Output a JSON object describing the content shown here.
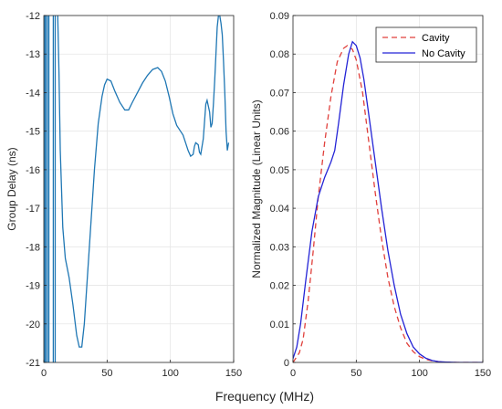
{
  "xlabel": "Frequency (MHz)",
  "chart_data": [
    {
      "type": "line",
      "ylabel": "Group Delay (ns)",
      "xlim": [
        0,
        150
      ],
      "ylim": [
        -21,
        -12
      ],
      "xticks": [
        0,
        50,
        100,
        150
      ],
      "yticks": [
        -21,
        -20,
        -19,
        -18,
        -17,
        -16,
        -15,
        -14,
        -13,
        -12
      ],
      "ytick_labels": [
        "-21",
        "-20",
        "-19",
        "-18",
        "-17",
        "-16",
        "-15",
        "-14",
        "-13",
        "-12"
      ],
      "grid": true,
      "color": "#1f77b4",
      "series": [
        {
          "x": [
            11,
            12,
            13,
            15,
            17,
            20,
            23,
            26,
            28,
            30,
            32,
            34,
            37,
            40,
            43,
            46,
            48,
            50,
            53,
            56,
            60,
            64,
            67,
            70,
            74,
            78,
            82,
            86,
            90,
            93,
            96,
            99,
            102,
            105,
            108,
            110,
            112,
            114,
            116,
            118,
            119,
            120,
            122,
            123,
            124,
            126,
            127,
            128,
            129,
            131,
            132,
            133,
            134,
            135,
            136,
            137,
            138,
            139,
            140,
            141,
            142,
            143,
            144,
            145,
            146
          ],
          "y": [
            -12,
            -13.5,
            -15.5,
            -17.5,
            -18.3,
            -18.8,
            -19.5,
            -20.3,
            -20.6,
            -20.6,
            -20.0,
            -19.0,
            -17.5,
            -16.0,
            -14.8,
            -14.1,
            -13.8,
            -13.65,
            -13.7,
            -13.95,
            -14.25,
            -14.45,
            -14.45,
            -14.25,
            -14.0,
            -13.75,
            -13.55,
            -13.4,
            -13.35,
            -13.45,
            -13.7,
            -14.1,
            -14.55,
            -14.85,
            -15.0,
            -15.1,
            -15.3,
            -15.5,
            -15.65,
            -15.6,
            -15.4,
            -15.3,
            -15.35,
            -15.55,
            -15.6,
            -15.2,
            -14.75,
            -14.3,
            -14.2,
            -14.5,
            -14.9,
            -14.8,
            -14.3,
            -13.7,
            -13.0,
            -12.3,
            -12.0,
            -12.0,
            -12.2,
            -12.5,
            -13.2,
            -14.0,
            -15.0,
            -15.5,
            -15.3
          ]
        }
      ],
      "vertical_spikes_x": [
        0.8,
        1.5,
        2.8,
        4.0,
        7.5,
        9.0
      ]
    },
    {
      "type": "line",
      "ylabel": "Normalized Magnitude (Linear Units)",
      "xlim": [
        0,
        150
      ],
      "ylim": [
        0,
        0.09
      ],
      "xticks": [
        0,
        50,
        100,
        150
      ],
      "yticks": [
        0,
        0.01,
        0.02,
        0.03,
        0.04,
        0.05,
        0.06,
        0.07,
        0.08,
        0.09
      ],
      "ytick_labels": [
        "0",
        "0.01",
        "0.02",
        "0.03",
        "0.04",
        "0.05",
        "0.06",
        "0.07",
        "0.08",
        "0.09"
      ],
      "grid": true,
      "legend": "top-right",
      "series": [
        {
          "name": "Cavity",
          "color": "#e0403c",
          "dash": true,
          "x": [
            0,
            5,
            8,
            12,
            16,
            20,
            25,
            30,
            35,
            40,
            43,
            47,
            50,
            55,
            60,
            65,
            70,
            75,
            80,
            85,
            90,
            95,
            100,
            105,
            110,
            115,
            120,
            130,
            140,
            150
          ],
          "y": [
            0.0,
            0.0025,
            0.006,
            0.016,
            0.029,
            0.043,
            0.057,
            0.069,
            0.078,
            0.0815,
            0.0822,
            0.0812,
            0.0785,
            0.07,
            0.057,
            0.044,
            0.032,
            0.022,
            0.0145,
            0.009,
            0.005,
            0.0028,
            0.0015,
            0.0008,
            0.0004,
            0.0002,
            0.0001,
            0.0,
            0.0,
            0.0
          ]
        },
        {
          "name": "No Cavity",
          "color": "#2323d6",
          "dash": false,
          "x": [
            0,
            3,
            6,
            10,
            15,
            20,
            25,
            30,
            33,
            36,
            40,
            44,
            47,
            50,
            53,
            56,
            60,
            65,
            70,
            75,
            80,
            85,
            90,
            95,
            100,
            105,
            110,
            115,
            120,
            130,
            140,
            150
          ],
          "y": [
            0.001,
            0.004,
            0.01,
            0.021,
            0.034,
            0.043,
            0.048,
            0.052,
            0.055,
            0.062,
            0.072,
            0.08,
            0.0832,
            0.0822,
            0.079,
            0.0735,
            0.064,
            0.052,
            0.04,
            0.029,
            0.02,
            0.0125,
            0.0075,
            0.004,
            0.0022,
            0.0011,
            0.0005,
            0.0002,
            0.0001,
            0.0,
            0.0,
            0.0
          ]
        }
      ]
    }
  ]
}
